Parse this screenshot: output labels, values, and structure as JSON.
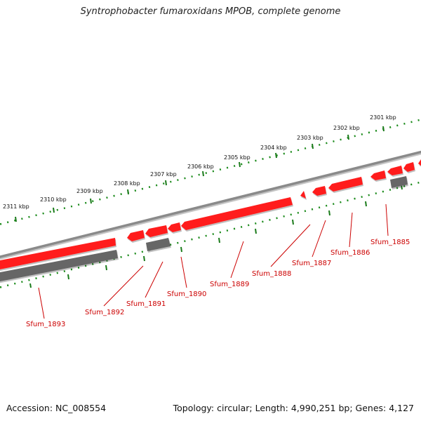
{
  "title": "Syntrophobacter fumaroxidans MPOB, complete genome",
  "accession": "Accession: NC_008554",
  "summary": "Topology: circular; Length: 4,990,251 bp; Genes: 4,127",
  "colors": {
    "forward_gene": "#ff0000",
    "reverse_gene": "#666666",
    "backbone": "#7a7a7a",
    "ticks": "#1a7a1a",
    "label": "#cc0000"
  },
  "kbp_labels": [
    "2301 kbp",
    "2302 kbp",
    "2303 kbp",
    "2304 kbp",
    "2305 kbp",
    "2306 kbp",
    "2307 kbp",
    "2308 kbp",
    "2309 kbp",
    "2310 kbp",
    "2311 kbp"
  ],
  "genes": [
    {
      "name": "Sfum_1885"
    },
    {
      "name": "Sfum_1886"
    },
    {
      "name": "Sfum_1887"
    },
    {
      "name": "Sfum_1888"
    },
    {
      "name": "Sfum_1889"
    },
    {
      "name": "Sfum_1890"
    },
    {
      "name": "Sfum_1891"
    },
    {
      "name": "Sfum_1892"
    },
    {
      "name": "Sfum_1893"
    }
  ]
}
